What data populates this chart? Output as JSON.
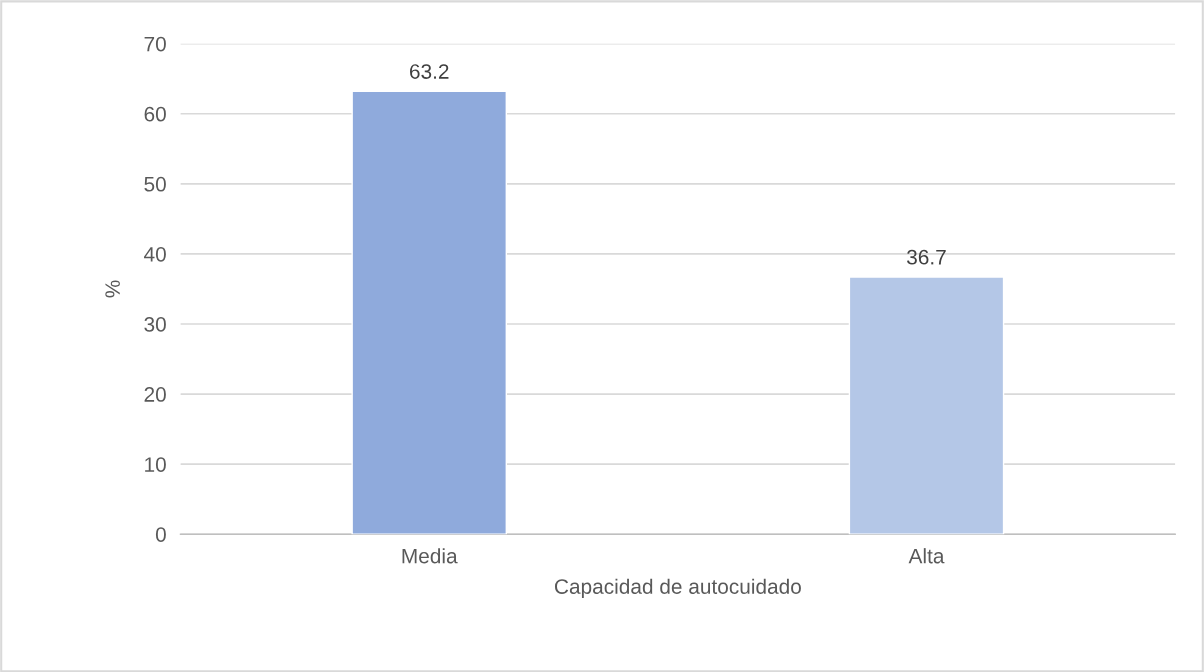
{
  "chart_data": {
    "type": "bar",
    "xlabel": "Capacidad de autocuidado",
    "ylabel": "%",
    "categories": [
      "Media",
      "Alta"
    ],
    "values": [
      63.2,
      36.7
    ],
    "colors": [
      "#8faadc",
      "#b4c7e7"
    ],
    "ylim": [
      0,
      70
    ],
    "yticks": [
      0,
      10,
      20,
      30,
      40,
      50,
      60,
      70
    ],
    "grid": "y",
    "data_labels": true
  }
}
